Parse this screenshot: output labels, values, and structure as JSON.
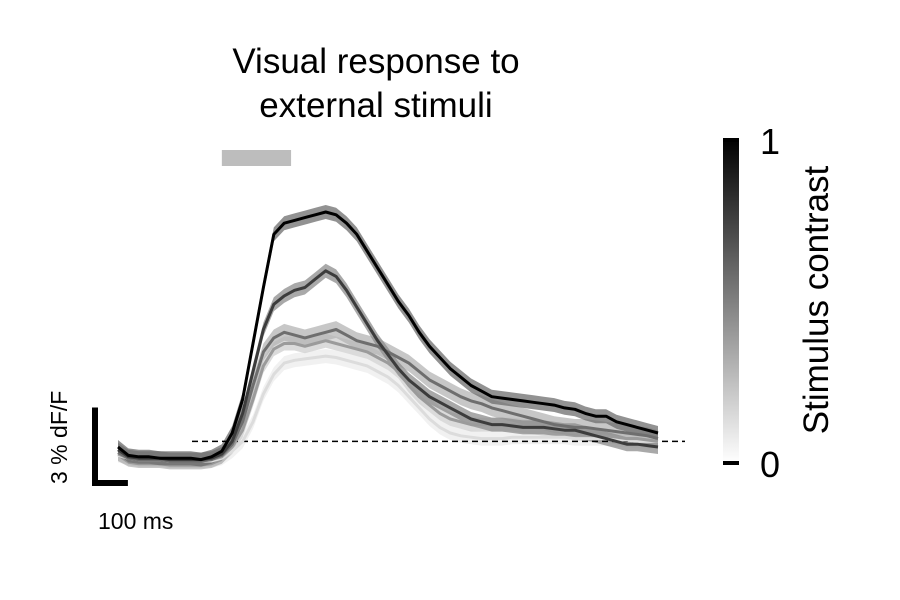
{
  "chart_data": {
    "type": "line",
    "title_lines": [
      "Visual response to",
      "external stimuli"
    ],
    "x_unit": "ms",
    "y_unit": "% dF/F",
    "x_range": [
      -300,
      1300
    ],
    "y_range": [
      -1.2,
      8.6
    ],
    "stimulus_window": [
      0,
      200
    ],
    "baseline": 0,
    "scalebar": {
      "x_value": 100,
      "x_label": "100 ms",
      "y_value": 3,
      "y_label": "3 % dF/F"
    },
    "colorbar": {
      "label": "Stimulus contrast",
      "min_label": "0",
      "max_label": "1",
      "min": 0,
      "max": 1
    },
    "x": [
      -300,
      -270,
      -240,
      -210,
      -180,
      -150,
      -120,
      -90,
      -60,
      -30,
      0,
      30,
      60,
      90,
      120,
      150,
      180,
      210,
      240,
      270,
      300,
      330,
      360,
      390,
      420,
      450,
      480,
      510,
      540,
      570,
      600,
      630,
      660,
      690,
      720,
      750,
      780,
      810,
      840,
      870,
      900,
      930,
      960,
      990,
      1020,
      1050,
      1080,
      1110,
      1140,
      1170,
      1200,
      1230,
      1260
    ],
    "series": [
      {
        "contrast": 1.0,
        "color": "#000000",
        "band_color": "#6e6e6e",
        "sem": 0.25,
        "values": [
          -0.2,
          -0.5,
          -0.55,
          -0.55,
          -0.6,
          -0.6,
          -0.6,
          -0.6,
          -0.65,
          -0.55,
          -0.35,
          0.3,
          1.5,
          3.5,
          5.5,
          7.4,
          7.8,
          7.9,
          8.0,
          8.1,
          8.2,
          8.1,
          7.8,
          7.4,
          6.8,
          6.2,
          5.6,
          5.0,
          4.5,
          3.9,
          3.4,
          3.0,
          2.6,
          2.3,
          2.0,
          1.8,
          1.6,
          1.55,
          1.5,
          1.45,
          1.4,
          1.35,
          1.3,
          1.2,
          1.15,
          1.0,
          0.9,
          0.9,
          0.7,
          0.6,
          0.5,
          0.4,
          0.3
        ]
      },
      {
        "contrast": 0.75,
        "color": "#3c3c3c",
        "band_color": "#8c8c8c",
        "sem": 0.25,
        "values": [
          -0.3,
          -0.55,
          -0.6,
          -0.6,
          -0.6,
          -0.65,
          -0.65,
          -0.65,
          -0.65,
          -0.6,
          -0.45,
          0.0,
          1.0,
          2.5,
          4.0,
          4.9,
          5.2,
          5.4,
          5.5,
          5.8,
          6.1,
          5.9,
          5.4,
          4.8,
          4.2,
          3.6,
          3.1,
          2.6,
          2.2,
          1.9,
          1.6,
          1.4,
          1.2,
          1.0,
          0.8,
          0.7,
          0.6,
          0.6,
          0.55,
          0.5,
          0.5,
          0.5,
          0.45,
          0.4,
          0.4,
          0.3,
          0.2,
          0.1,
          0.0,
          -0.1,
          -0.1,
          -0.15,
          -0.2
        ]
      },
      {
        "contrast": 0.5,
        "color": "#6e6e6e",
        "band_color": "#b4b4b4",
        "sem": 0.3,
        "values": [
          -0.4,
          -0.6,
          -0.65,
          -0.65,
          -0.65,
          -0.7,
          -0.7,
          -0.7,
          -0.7,
          -0.65,
          -0.5,
          -0.1,
          0.7,
          2.0,
          3.2,
          3.7,
          3.9,
          3.8,
          3.7,
          3.8,
          3.9,
          4.0,
          3.8,
          3.6,
          3.5,
          3.4,
          3.2,
          3.0,
          2.8,
          2.5,
          2.2,
          2.0,
          1.8,
          1.6,
          1.45,
          1.35,
          1.2,
          1.1,
          1.0,
          0.9,
          0.8,
          0.7,
          0.6,
          0.55,
          0.5,
          0.5,
          0.45,
          0.4,
          0.35,
          0.3,
          0.25,
          0.2,
          0.1
        ]
      },
      {
        "contrast": 0.3,
        "color": "#9b9b9b",
        "band_color": "#cfcfcf",
        "sem": 0.25,
        "values": [
          -0.45,
          -0.6,
          -0.65,
          -0.65,
          -0.65,
          -0.7,
          -0.7,
          -0.7,
          -0.7,
          -0.65,
          -0.55,
          -0.2,
          0.4,
          1.5,
          2.7,
          3.3,
          3.5,
          3.5,
          3.4,
          3.5,
          3.6,
          3.5,
          3.4,
          3.3,
          3.2,
          3.0,
          2.8,
          2.5,
          2.0,
          1.6,
          1.3,
          1.0,
          0.8,
          0.7,
          0.6,
          0.6,
          0.6,
          0.6,
          0.6,
          0.55,
          0.5,
          0.45,
          0.4,
          0.35,
          0.3,
          0.25,
          0.2,
          0.2,
          0.15,
          0.1,
          0.1,
          0.05,
          0.0
        ]
      },
      {
        "contrast": 0.1,
        "color": "#dcdcdc",
        "band_color": "#ececec",
        "sem": 0.25,
        "values": [
          -0.5,
          -0.6,
          -0.65,
          -0.65,
          -0.65,
          -0.7,
          -0.7,
          -0.7,
          -0.7,
          -0.7,
          -0.6,
          -0.35,
          0.0,
          0.7,
          1.7,
          2.4,
          2.8,
          2.9,
          2.95,
          3.0,
          3.05,
          3.0,
          2.9,
          2.8,
          2.7,
          2.5,
          2.3,
          2.0,
          1.6,
          1.2,
          0.8,
          0.5,
          0.3,
          0.2,
          0.15,
          0.1,
          0.1,
          0.1,
          0.15,
          0.15,
          0.15,
          0.15,
          0.15,
          0.15,
          0.1,
          0.1,
          0.1,
          0.1,
          0.05,
          0.05,
          0.0,
          0.0,
          0.0
        ]
      }
    ]
  }
}
